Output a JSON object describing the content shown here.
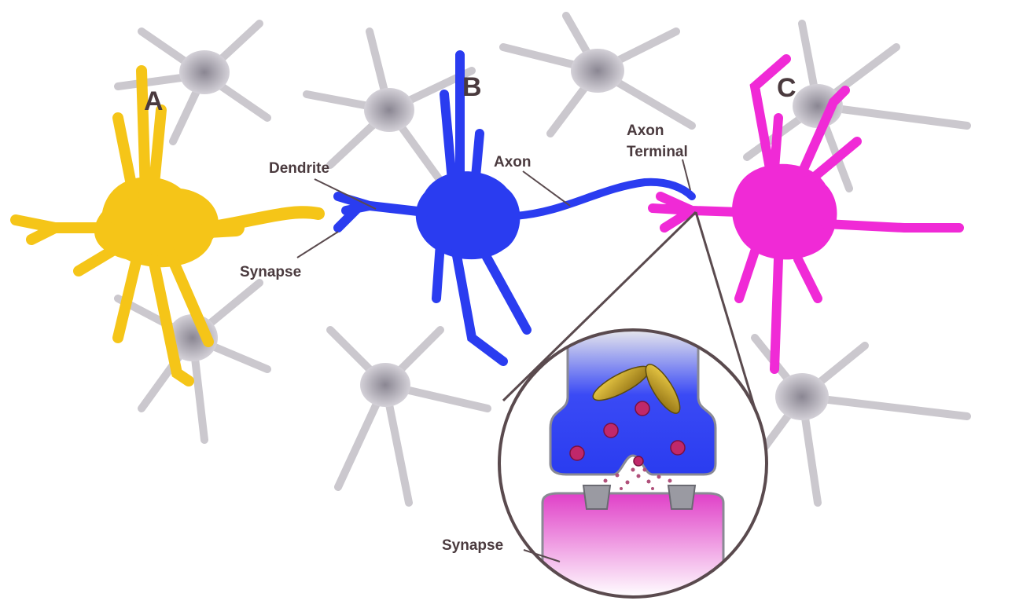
{
  "neurons": {
    "a": {
      "letter": "A",
      "color": "#f5c518"
    },
    "b": {
      "letter": "B",
      "color": "#2a3cf0"
    },
    "c": {
      "letter": "C",
      "color": "#f02ad6"
    }
  },
  "labels": {
    "dendrite": "Dendrite",
    "synapse_left": "Synapse",
    "axon": "Axon",
    "axon_terminal_line1": "Axon",
    "axon_terminal_line2": "Terminal",
    "synapse_bottom": "Synapse"
  },
  "colors": {
    "background_neurons": "#c9c6cc",
    "background_nucleus": "#9d99a3",
    "leader_line": "#5a4a4e",
    "vesicle": "#c0286a",
    "mitochondrion": "#c9a81a",
    "receptor": "#9a9aa2",
    "postsynaptic": "#e040c8"
  }
}
